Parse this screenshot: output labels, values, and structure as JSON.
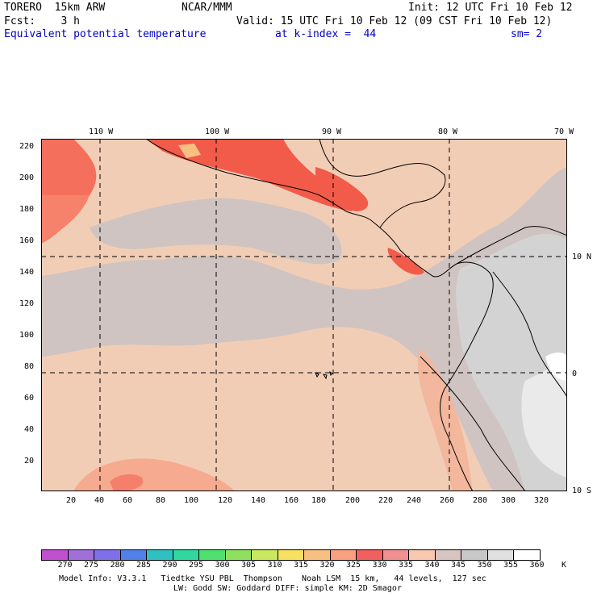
{
  "header": {
    "model": "TORERO  15km ARW",
    "center": "NCAR/MMM",
    "init": "Init: 12 UTC Fri 10 Feb 12",
    "fcst": "Fcst:    3 h",
    "valid": "Valid: 15 UTC Fri 10 Feb 12 (09 CST Fri 10 Feb 12)",
    "field": "Equivalent potential temperature",
    "level": "at k-index =  44",
    "smooth": "sm= 2"
  },
  "map": {
    "lon_labels": [
      "110 W",
      "100 W",
      "90 W",
      "80 W",
      "70 W"
    ],
    "lat_labels": [
      "10 N",
      "0",
      "10 S"
    ],
    "y_ticks": [
      "220",
      "200",
      "180",
      "160",
      "140",
      "120",
      "100",
      "80",
      "60",
      "40",
      "20"
    ],
    "x_ticks": [
      "20",
      "40",
      "60",
      "80",
      "100",
      "120",
      "140",
      "160",
      "180",
      "200",
      "220",
      "240",
      "260",
      "280",
      "300",
      "320"
    ]
  },
  "colorbar": {
    "labels": [
      "270",
      "275",
      "280",
      "285",
      "290",
      "295",
      "300",
      "305",
      "310",
      "315",
      "320",
      "325",
      "330",
      "335",
      "340",
      "345",
      "350",
      "355",
      "360"
    ],
    "unit": "K",
    "colors": [
      "#c050d0",
      "#a070d8",
      "#8070e8",
      "#5080e8",
      "#30c0c0",
      "#30d8a0",
      "#50e070",
      "#90e060",
      "#c8e860",
      "#f8e060",
      "#f8c080",
      "#f8a080",
      "#f06060",
      "#f09090",
      "#f8c8b0",
      "#d8c4c0",
      "#c8c8c8",
      "#e0e0e0",
      "#ffffff"
    ]
  },
  "footer": {
    "line1": "Model Info: V3.3.1   Tiedtke YSU PBL  Thompson    Noah LSM  15 km,   44 levels,  127 sec",
    "line2": "LW: Godd SW: Goddard DIFF: simple KM: 2D Smagor"
  }
}
